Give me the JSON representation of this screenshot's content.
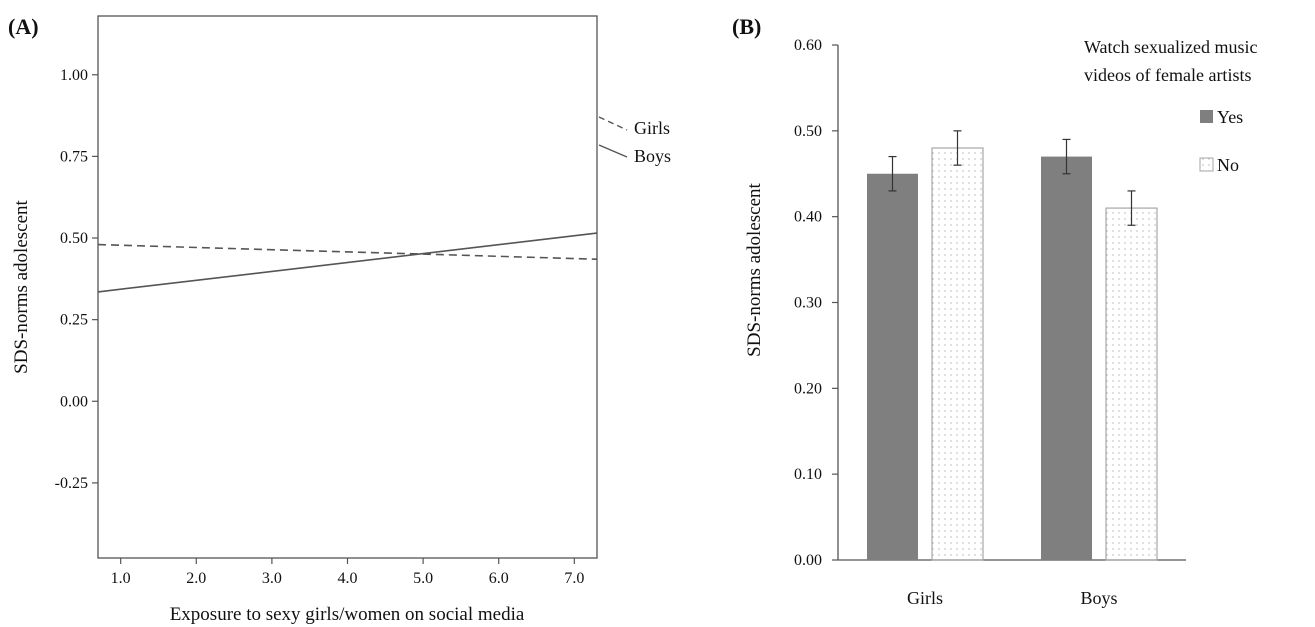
{
  "chart_data": [
    {
      "panel": "(A)",
      "type": "line",
      "xlabel": "Exposure to sexy girls/women on social media",
      "ylabel": "SDS-norms adolescent",
      "xlim": [
        0.7,
        7.3
      ],
      "ylim": [
        -0.48,
        1.18
      ],
      "xticks": [
        "1.0",
        "2.0",
        "3.0",
        "4.0",
        "5.0",
        "6.0",
        "7.0"
      ],
      "yticks": [
        "1.00",
        "0.75",
        "0.50",
        "0.25",
        "0.00",
        "-0.25"
      ],
      "series": [
        {
          "name": "Girls",
          "style": "dashed",
          "x": [
            0.7,
            7.3
          ],
          "y": [
            0.48,
            0.435
          ]
        },
        {
          "name": "Boys",
          "style": "solid",
          "x": [
            0.7,
            7.3
          ],
          "y": [
            0.335,
            0.515
          ]
        }
      ]
    },
    {
      "panel": "(B)",
      "type": "bar",
      "ylabel": "SDS-norms adolescent",
      "categories": [
        "Girls",
        "Boys"
      ],
      "ylim": [
        0,
        0.6
      ],
      "yticks": [
        "0.00",
        "0.10",
        "0.20",
        "0.30",
        "0.40",
        "0.50",
        "0.60"
      ],
      "legend_title": [
        "Watch sexualized music",
        "videos of female artists"
      ],
      "series": [
        {
          "name": "Yes",
          "fill": "solid",
          "values": [
            0.45,
            0.47
          ],
          "errors": [
            0.02,
            0.02
          ]
        },
        {
          "name": "No",
          "fill": "dotted",
          "values": [
            0.48,
            0.41
          ],
          "errors": [
            0.02,
            0.02
          ]
        }
      ]
    }
  ],
  "colors": {
    "line": "#555555",
    "bar_yes": "#7f7f7f",
    "bar_no_border": "#a6a6a6",
    "dot": "#b0b0b0"
  }
}
